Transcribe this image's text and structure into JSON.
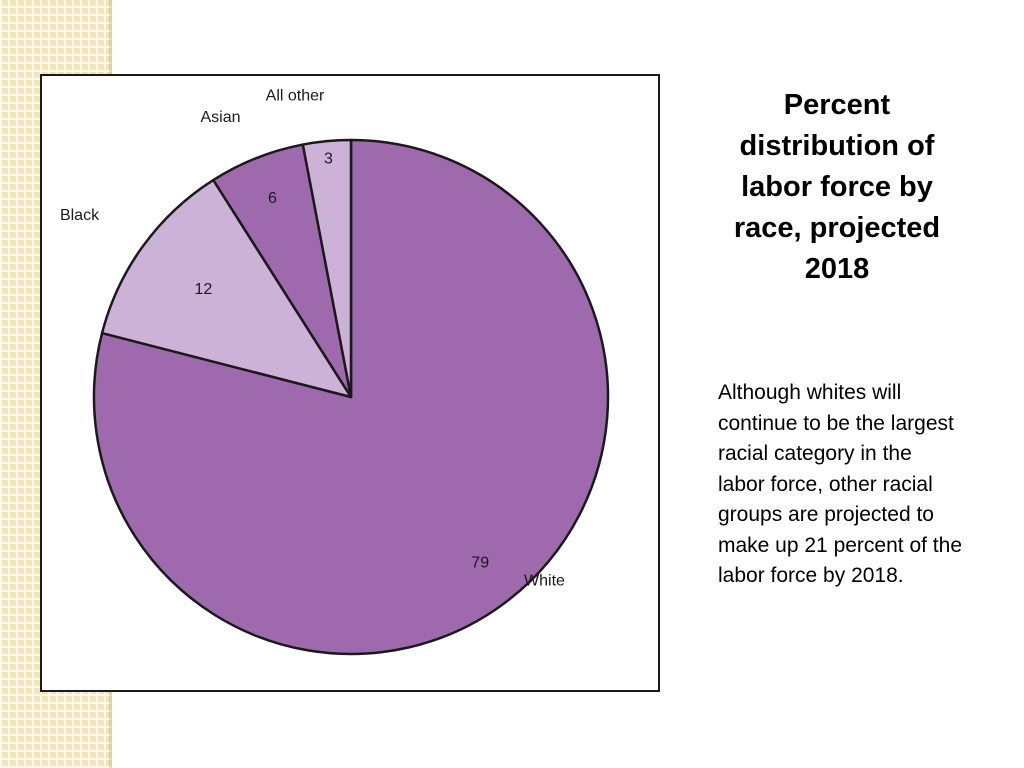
{
  "slide": {
    "title": "Percent distribution of labor force by race, projected 2018",
    "body": "Although whites will continue to be the largest racial category in the labor force, other racial groups are projected to make up 21 percent of the labor force by 2018."
  },
  "chart_data": {
    "type": "pie",
    "title": "",
    "start": "12 o'clock",
    "direction": "clockwise",
    "slices": [
      {
        "label": "White",
        "value": 79,
        "value_label": "79",
        "color": "#9e6aad"
      },
      {
        "label": "Black",
        "value": 12,
        "value_label": "12",
        "color": "#cdb2d8"
      },
      {
        "label": "Asian",
        "value": 6,
        "value_label": "6",
        "color": "#9e6aad"
      },
      {
        "label": "All other",
        "value": 3,
        "value_label": "3",
        "color": "#cdb2d8"
      }
    ],
    "stroke_color": "#1a1a1a"
  }
}
